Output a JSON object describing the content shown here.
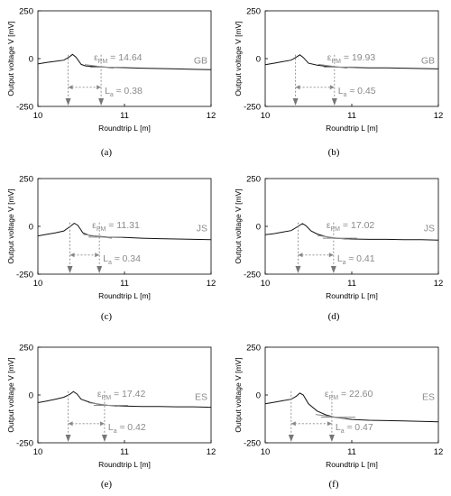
{
  "chart_data": [
    {
      "type": "line",
      "panel": "(a)",
      "xlabel": "Roundtrip  L [m]",
      "ylabel": "Output voltage  V [mV]",
      "xlim": [
        10,
        12
      ],
      "ylim": [
        -250,
        250
      ],
      "xticks": [
        "10",
        "11",
        "12"
      ],
      "yticks": [
        "250",
        "0",
        "-250"
      ],
      "series_label": "GB",
      "epsilon_pm": "ε",
      "epsilon_sub": "PM",
      "epsilon_value": " = 14.64",
      "la_symbol": "L",
      "la_sub": "a",
      "la_value": " ≈ 0.38",
      "marker_x": [
        10.35,
        10.73
      ],
      "x": [
        10.0,
        10.1,
        10.2,
        10.3,
        10.36,
        10.4,
        10.44,
        10.5,
        10.55,
        10.6,
        10.7,
        10.8,
        11.0,
        11.2,
        11.4,
        11.6,
        11.8,
        12.0
      ],
      "y": [
        -28,
        -20,
        -14,
        -8,
        8,
        22,
        8,
        -30,
        -38,
        -40,
        -42,
        -45,
        -47,
        -50,
        -52,
        -54,
        -56,
        -58
      ]
    },
    {
      "type": "line",
      "panel": "(b)",
      "xlabel": "Roundtrip  L [m]",
      "ylabel": "Output voltage  V [mV]",
      "xlim": [
        10,
        12
      ],
      "ylim": [
        -250,
        250
      ],
      "xticks": [
        "10",
        "11",
        "12"
      ],
      "yticks": [
        "250",
        "0",
        "-250"
      ],
      "series_label": "GB",
      "epsilon_pm": "ε",
      "epsilon_sub": "PM",
      "epsilon_value": " = 19.93",
      "la_symbol": "L",
      "la_sub": "a",
      "la_value": " ≈ 0.45",
      "marker_x": [
        10.35,
        10.8
      ],
      "x": [
        10.0,
        10.1,
        10.2,
        10.3,
        10.36,
        10.4,
        10.44,
        10.5,
        10.6,
        10.7,
        10.8,
        11.0,
        11.2,
        11.4,
        11.6,
        11.8,
        12.0
      ],
      "y": [
        -32,
        -24,
        -16,
        -8,
        8,
        20,
        6,
        -24,
        -34,
        -40,
        -44,
        -46,
        -48,
        -48,
        -50,
        -52,
        -54
      ]
    },
    {
      "type": "line",
      "panel": "(c)",
      "xlabel": "Roundtrip  L [m]",
      "ylabel": "Output voltage  V [mV]",
      "xlim": [
        10,
        12
      ],
      "ylim": [
        -250,
        250
      ],
      "xticks": [
        "10",
        "11",
        "12"
      ],
      "yticks": [
        "250",
        "0",
        "-250"
      ],
      "series_label": "JS",
      "epsilon_pm": "ε",
      "epsilon_sub": "PM",
      "epsilon_value": " = 11.31",
      "la_symbol": "L",
      "la_sub": "a",
      "la_value": " ≈ 0.34",
      "marker_x": [
        10.37,
        10.71
      ],
      "x": [
        10.0,
        10.1,
        10.2,
        10.3,
        10.38,
        10.42,
        10.46,
        10.52,
        10.6,
        10.7,
        10.8,
        11.0,
        11.2,
        11.4,
        11.6,
        11.8,
        12.0
      ],
      "y": [
        -50,
        -42,
        -34,
        -24,
        2,
        16,
        6,
        -34,
        -48,
        -52,
        -56,
        -58,
        -62,
        -64,
        -66,
        -68,
        -70
      ]
    },
    {
      "type": "line",
      "panel": "(d)",
      "xlabel": "Roundtrip  L [m]",
      "ylabel": "Output voltage  V [mV]",
      "xlim": [
        10,
        12
      ],
      "ylim": [
        -250,
        250
      ],
      "xticks": [
        "10",
        "11",
        "12"
      ],
      "yticks": [
        "250",
        "0",
        "-250"
      ],
      "series_label": "JS",
      "epsilon_pm": "ε",
      "epsilon_sub": "PM",
      "epsilon_value": " = 17.02",
      "la_symbol": "L",
      "la_sub": "a",
      "la_value": " ≈ 0.41",
      "marker_x": [
        10.38,
        10.79
      ],
      "x": [
        10.0,
        10.1,
        10.2,
        10.3,
        10.38,
        10.43,
        10.47,
        10.53,
        10.6,
        10.7,
        10.8,
        11.0,
        11.2,
        11.4,
        11.6,
        11.8,
        12.0
      ],
      "y": [
        -44,
        -38,
        -30,
        -22,
        0,
        14,
        4,
        -24,
        -40,
        -54,
        -62,
        -66,
        -68,
        -68,
        -70,
        -70,
        -72
      ]
    },
    {
      "type": "line",
      "panel": "(e)",
      "xlabel": "Roundtrip  L [m]",
      "ylabel": "Output voltage  V [mV]",
      "xlim": [
        10,
        12
      ],
      "ylim": [
        -250,
        250
      ],
      "xticks": [
        "10",
        "11",
        "12"
      ],
      "yticks": [
        "250",
        "0",
        "-250"
      ],
      "series_label": "ES",
      "epsilon_pm": "ε",
      "epsilon_sub": "PM",
      "epsilon_value": " = 17.42",
      "la_symbol": "L",
      "la_sub": "a",
      "la_value": " ≈ 0.42",
      "marker_x": [
        10.35,
        10.77
      ],
      "x": [
        10.0,
        10.1,
        10.2,
        10.3,
        10.37,
        10.41,
        10.45,
        10.5,
        10.6,
        10.7,
        10.8,
        11.0,
        11.2,
        11.4,
        11.6,
        11.8,
        12.0
      ],
      "y": [
        -40,
        -32,
        -22,
        -12,
        4,
        18,
        6,
        -22,
        -38,
        -48,
        -54,
        -58,
        -60,
        -60,
        -62,
        -62,
        -64
      ]
    },
    {
      "type": "line",
      "panel": "(f)",
      "xlabel": "Roundtrip  L [m]",
      "ylabel": "Output voltage  V [mV]",
      "xlim": [
        10,
        12
      ],
      "ylim": [
        -250,
        250
      ],
      "xticks": [
        "10",
        "11",
        "12"
      ],
      "yticks": [
        "250",
        "0",
        "-250"
      ],
      "series_label": "ES",
      "epsilon_pm": "ε",
      "epsilon_sub": "PM",
      "epsilon_value": " = 22.60",
      "la_symbol": "L",
      "la_sub": "a",
      "la_value": " ≈ 0.47",
      "marker_x": [
        10.3,
        10.77
      ],
      "x": [
        10.0,
        10.1,
        10.2,
        10.3,
        10.36,
        10.4,
        10.44,
        10.5,
        10.6,
        10.7,
        10.8,
        11.0,
        11.2,
        11.4,
        11.6,
        11.8,
        12.0
      ],
      "y": [
        -46,
        -38,
        -30,
        -22,
        -6,
        10,
        0,
        -46,
        -84,
        -104,
        -116,
        -128,
        -132,
        -134,
        -136,
        -138,
        -140
      ]
    }
  ]
}
